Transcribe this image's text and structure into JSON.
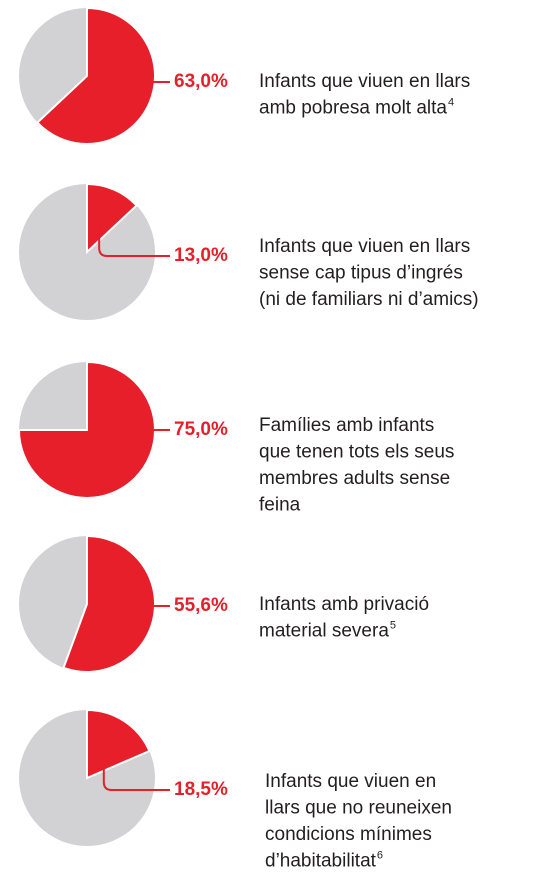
{
  "chart_data": [
    {
      "type": "pie",
      "values": [
        63.0
      ],
      "value_labels": [
        "63,0%"
      ],
      "color": "#e61f2b",
      "rest_color": "#d2d2d4",
      "lines": [
        "Infants que viuen en llars",
        "amb pobresa molt alta"
      ],
      "footnote": "4"
    },
    {
      "type": "pie",
      "values": [
        13.0
      ],
      "value_labels": [
        "13,0%"
      ],
      "color": "#e61f2b",
      "rest_color": "#d2d2d4",
      "lines": [
        "Infants que viuen en llars",
        "sense cap tipus d’ingrés",
        "(ni de familiars ni d’amics)"
      ]
    },
    {
      "type": "pie",
      "values": [
        75.0
      ],
      "value_labels": [
        "75,0%"
      ],
      "color": "#e61f2b",
      "rest_color": "#d2d2d4",
      "lines": [
        "Famílies amb infants",
        "que tenen tots  els seus",
        "membres adults sense",
        "feina"
      ]
    },
    {
      "type": "pie",
      "values": [
        55.6
      ],
      "value_labels": [
        "55,6%"
      ],
      "color": "#e61f2b",
      "rest_color": "#d2d2d4",
      "lines": [
        "Infants amb privació",
        "material severa"
      ],
      "footnote": "5"
    },
    {
      "type": "pie",
      "values": [
        18.5
      ],
      "value_labels": [
        "18,5%"
      ],
      "color": "#e61f2b",
      "rest_color": "#d2d2d4",
      "lines": [
        "Infants que viuen en",
        "llars que no reuneixen",
        "condicions mínimes",
        "d’habitabilitat"
      ],
      "footnote": "6"
    }
  ]
}
